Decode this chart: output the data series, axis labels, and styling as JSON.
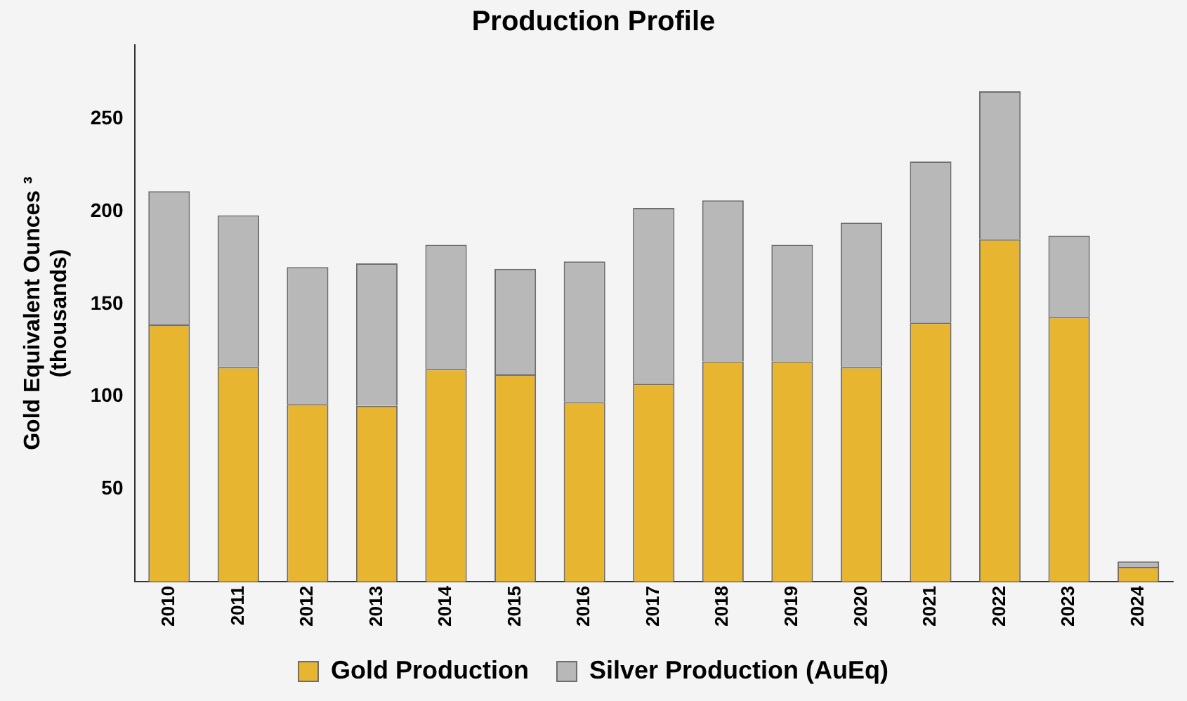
{
  "chart_data": {
    "type": "bar",
    "title": "Production Profile",
    "ylabel": "Gold Equivalent Ounces ³\n(thousands)",
    "categories": [
      "2010",
      "2011",
      "2012",
      "2013",
      "2014",
      "2015",
      "2016",
      "2017",
      "2018",
      "2019",
      "2020",
      "2021",
      "2022",
      "2023",
      "2024"
    ],
    "stacked": true,
    "series": [
      {
        "name": "Gold Production",
        "color": "#e8b530",
        "values": [
          139,
          116,
          96,
          95,
          115,
          112,
          97,
          107,
          119,
          119,
          116,
          140,
          185,
          143,
          8
        ]
      },
      {
        "name": "Silver Production (AuEq)",
        "color": "#b8b8b8",
        "values": [
          72,
          82,
          74,
          77,
          67,
          57,
          76,
          95,
          87,
          63,
          78,
          87,
          80,
          44,
          3
        ]
      }
    ],
    "ylim": [
      0,
      290
    ],
    "yticks": [
      50,
      100,
      150,
      200,
      250
    ],
    "grid": false,
    "legend": "bottom"
  }
}
